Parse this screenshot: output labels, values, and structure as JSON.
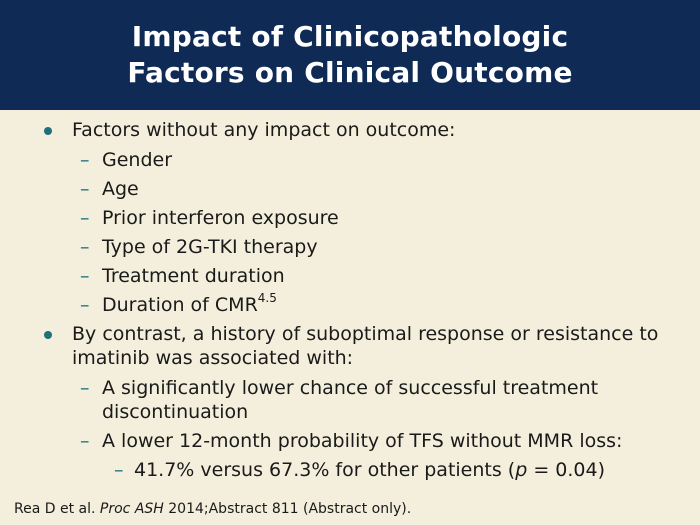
{
  "title": {
    "line1": "Impact of Clinicopathologic",
    "line2": "Factors on Clinical Outcome"
  },
  "bullets": {
    "b1": {
      "text": "Factors without any impact on outcome:",
      "items": [
        "Gender",
        "Age",
        "Prior interferon exposure",
        "Type of 2G-TKI therapy",
        "Treatment duration",
        "Duration of CMR"
      ],
      "cmr_superscript": "4.5"
    },
    "b2": {
      "text": "By contrast, a history of suboptimal response or resistance to imatinib was associated with:",
      "items": [
        "A significantly lower chance of successful treatment discontinuation",
        "A lower 12-month probability of TFS without MMR loss:"
      ],
      "sub": {
        "before": "41.7% versus 67.3% for other patients (",
        "p": "p",
        "after": " = 0.04)"
      }
    }
  },
  "footer": {
    "authors": "Rea D et al. ",
    "journal": "Proc ASH",
    "rest": " 2014;Abstract 811 (Abstract only)."
  },
  "colors": {
    "header_bg": "#0e2a55",
    "accent": "#1f6f7d",
    "background": "#f3efdc"
  }
}
